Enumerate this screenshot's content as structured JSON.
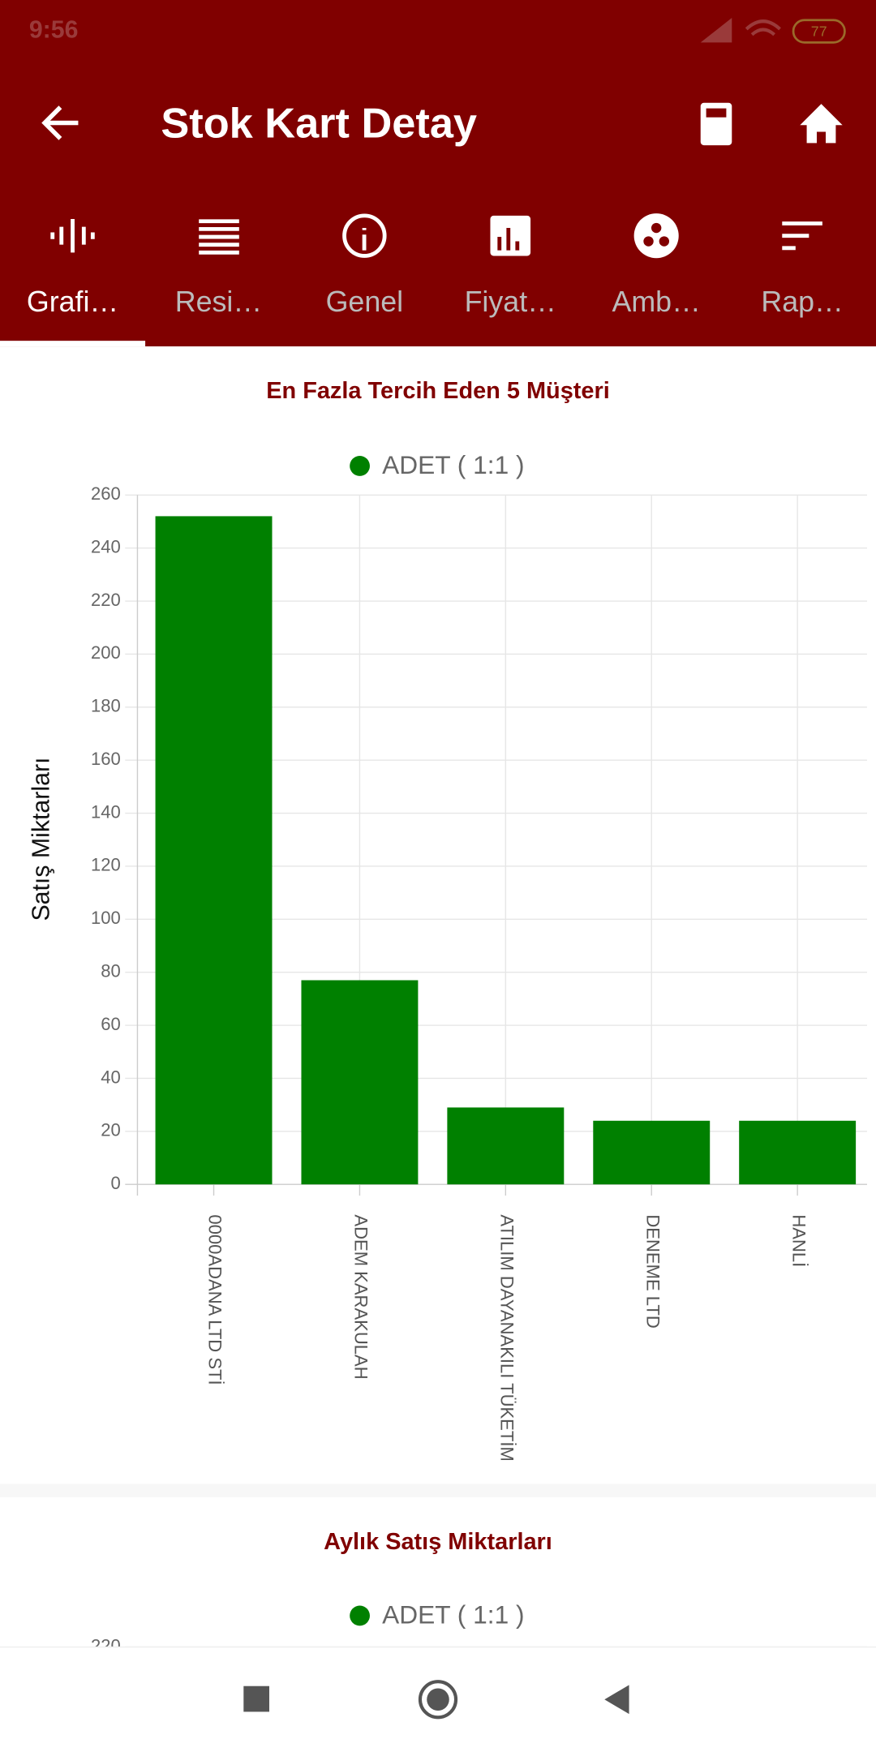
{
  "status_bar": {
    "time": "9:56",
    "battery": "77"
  },
  "app_bar": {
    "title": "Stok Kart Detay"
  },
  "tabs": [
    "Grafi…",
    "Resi…",
    "Genel",
    "Fiyat…",
    "Amb…",
    "Rap…"
  ],
  "chart_data": [
    {
      "type": "bar",
      "title": "En Fazla Tercih Eden 5 Müşteri",
      "y_label": "Satış Miktarları",
      "categories": [
        "0000ADANA LTD STİ",
        "ADEM KARAKULAH",
        "ATILIM DAYANAKILI TÜKETİM",
        "DENEME LTD",
        "HANLİ"
      ],
      "series": [
        {
          "name": "ADET ( 1:1 )",
          "color": "#008000",
          "values": [
            252,
            77,
            29,
            24,
            24
          ]
        }
      ],
      "ylim": [
        0,
        260
      ],
      "yticks": [
        0,
        20,
        40,
        60,
        80,
        100,
        120,
        140,
        160,
        180,
        200,
        220,
        240,
        260
      ],
      "grid": true
    },
    {
      "type": "bar",
      "title": "Aylık Satış Miktarları",
      "series": [
        {
          "name": "ADET ( 1:1 )",
          "color": "#008000"
        }
      ],
      "yticks": [
        220
      ]
    }
  ]
}
